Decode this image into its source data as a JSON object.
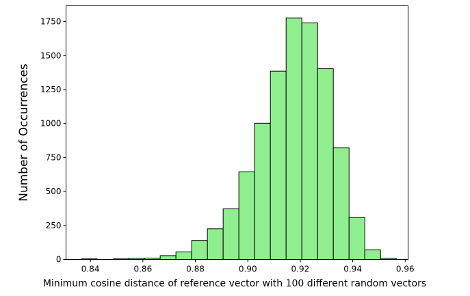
{
  "chart_data": {
    "type": "bar",
    "subtype": "histogram",
    "xlabel": "Minimum cosine distance of reference vector with 100 different random vectors",
    "ylabel": "Number of Occurrences",
    "bar_color": "#90ee90",
    "edge_color": "#000000",
    "xlim": [
      0.8307,
      0.9611
    ],
    "ylim": [
      0,
      1866
    ],
    "xticks": [
      {
        "value": 0.84,
        "label": "0.84"
      },
      {
        "value": 0.86,
        "label": "0.86"
      },
      {
        "value": 0.88,
        "label": "0.88"
      },
      {
        "value": 0.9,
        "label": "0.90"
      },
      {
        "value": 0.92,
        "label": "0.92"
      },
      {
        "value": 0.94,
        "label": "0.94"
      },
      {
        "value": 0.96,
        "label": "0.96"
      }
    ],
    "yticks": [
      {
        "value": 0,
        "label": "0"
      },
      {
        "value": 250,
        "label": "250"
      },
      {
        "value": 500,
        "label": "500"
      },
      {
        "value": 750,
        "label": "750"
      },
      {
        "value": 1000,
        "label": "1000"
      },
      {
        "value": 1250,
        "label": "1250"
      },
      {
        "value": 1500,
        "label": "1500"
      },
      {
        "value": 1750,
        "label": "1750"
      }
    ],
    "bins": [
      {
        "x0": 0.8366,
        "x1": 0.8426,
        "count": 4
      },
      {
        "x0": 0.8426,
        "x1": 0.8486,
        "count": 0
      },
      {
        "x0": 0.8486,
        "x1": 0.8546,
        "count": 4
      },
      {
        "x0": 0.8546,
        "x1": 0.8606,
        "count": 8
      },
      {
        "x0": 0.8606,
        "x1": 0.8666,
        "count": 10
      },
      {
        "x0": 0.8666,
        "x1": 0.8726,
        "count": 28
      },
      {
        "x0": 0.8726,
        "x1": 0.8786,
        "count": 55
      },
      {
        "x0": 0.8786,
        "x1": 0.8846,
        "count": 140
      },
      {
        "x0": 0.8846,
        "x1": 0.8906,
        "count": 225
      },
      {
        "x0": 0.8906,
        "x1": 0.8966,
        "count": 372
      },
      {
        "x0": 0.8966,
        "x1": 0.9026,
        "count": 645
      },
      {
        "x0": 0.9026,
        "x1": 0.9086,
        "count": 1002
      },
      {
        "x0": 0.9086,
        "x1": 0.9146,
        "count": 1385
      },
      {
        "x0": 0.9146,
        "x1": 0.9206,
        "count": 1777
      },
      {
        "x0": 0.9206,
        "x1": 0.9266,
        "count": 1740
      },
      {
        "x0": 0.9266,
        "x1": 0.9326,
        "count": 1403
      },
      {
        "x0": 0.9326,
        "x1": 0.9386,
        "count": 822
      },
      {
        "x0": 0.9386,
        "x1": 0.9446,
        "count": 308
      },
      {
        "x0": 0.9446,
        "x1": 0.9506,
        "count": 70
      },
      {
        "x0": 0.9506,
        "x1": 0.9566,
        "count": 8
      }
    ]
  }
}
